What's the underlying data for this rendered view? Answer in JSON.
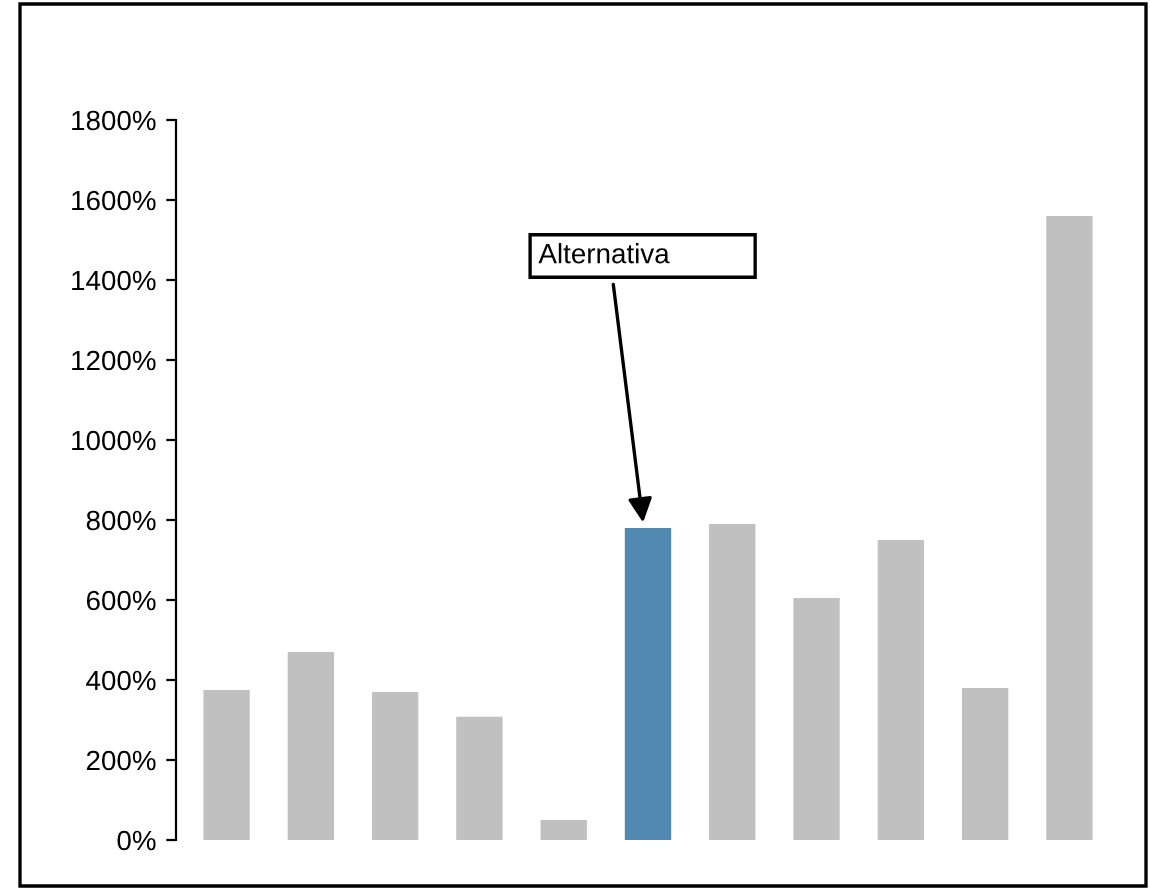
{
  "chart_data": {
    "type": "bar",
    "categories": [
      null,
      null,
      null,
      null,
      null,
      null,
      null,
      null,
      null,
      null,
      null
    ],
    "values": [
      375,
      470,
      370,
      308,
      50,
      780,
      790,
      605,
      750,
      380,
      1560
    ],
    "colors": [
      "#c0c0c0",
      "#c0c0c0",
      "#c0c0c0",
      "#c0c0c0",
      "#c0c0c0",
      "#5189b0",
      "#c0c0c0",
      "#c0c0c0",
      "#c0c0c0",
      "#c0c0c0",
      "#c0c0c0"
    ],
    "ylim": [
      0,
      1800
    ],
    "yticks": [
      {
        "value": 0,
        "label": "0%"
      },
      {
        "value": 200,
        "label": "200%"
      },
      {
        "value": 400,
        "label": "400%"
      },
      {
        "value": 600,
        "label": "600%"
      },
      {
        "value": 800,
        "label": "800%"
      },
      {
        "value": 1000,
        "label": "1000%"
      },
      {
        "value": 1200,
        "label": "1200%"
      },
      {
        "value": 1400,
        "label": "1400%"
      },
      {
        "value": 1600,
        "label": "1600%"
      },
      {
        "value": 1800,
        "label": "1800%"
      }
    ],
    "annotations": [
      "Alternativa"
    ],
    "grid": false,
    "legend": false
  }
}
